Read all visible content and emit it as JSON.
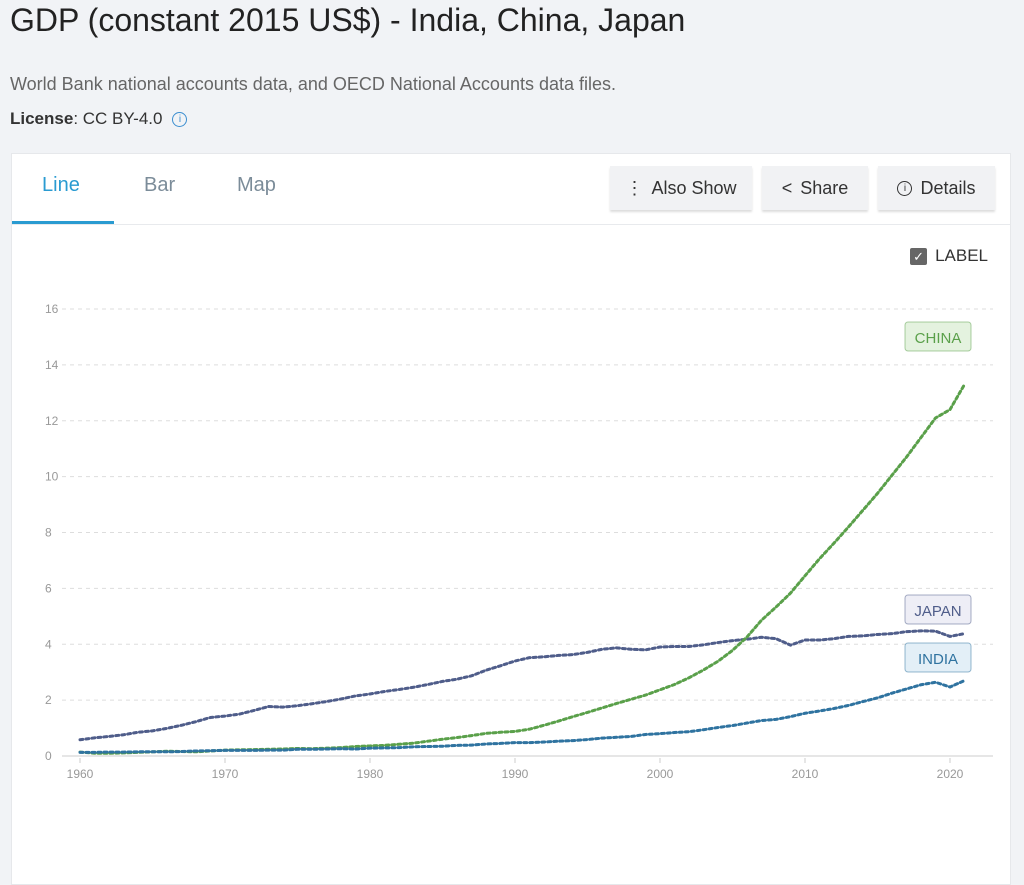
{
  "header": {
    "title": "GDP (constant 2015 US$) - India, China, Japan",
    "source": "World Bank national accounts data, and OECD National Accounts data files.",
    "license_label": "License",
    "license_value": ": CC BY-4.0"
  },
  "tabs": [
    {
      "label": "Line"
    },
    {
      "label": "Bar"
    },
    {
      "label": "Map"
    }
  ],
  "buttons": {
    "also_show": "Also Show",
    "share": "Share",
    "details": "Details"
  },
  "label_toggle": {
    "label": "LABEL",
    "checked": true
  },
  "chart_data": {
    "type": "line",
    "title": "GDP (constant 2015 US$) - India, China, Japan",
    "xlabel": "",
    "ylabel": "",
    "xlim": [
      1960,
      2021
    ],
    "ylim": [
      0,
      16
    ],
    "yticks": [
      0,
      2,
      4,
      6,
      8,
      10,
      12,
      14,
      16
    ],
    "xticks": [
      1960,
      1970,
      1980,
      1990,
      2000,
      2010,
      2020
    ],
    "x_start": 1960,
    "series": [
      {
        "name": "JAPAN",
        "color": "#4f5d8a",
        "label_bg": "#eeeef6",
        "values": [
          0.58,
          0.65,
          0.7,
          0.76,
          0.85,
          0.9,
          0.99,
          1.1,
          1.23,
          1.38,
          1.43,
          1.5,
          1.63,
          1.77,
          1.75,
          1.8,
          1.87,
          1.95,
          2.04,
          2.15,
          2.22,
          2.31,
          2.38,
          2.46,
          2.56,
          2.67,
          2.75,
          2.87,
          3.07,
          3.23,
          3.4,
          3.52,
          3.55,
          3.6,
          3.63,
          3.71,
          3.82,
          3.87,
          3.82,
          3.8,
          3.9,
          3.92,
          3.92,
          3.98,
          4.06,
          4.13,
          4.18,
          4.25,
          4.2,
          3.97,
          4.15,
          4.15,
          4.2,
          4.28,
          4.3,
          4.35,
          4.38,
          4.45,
          4.48,
          4.47,
          4.28,
          4.38
        ]
      },
      {
        "name": "CHINA",
        "color": "#5aa04a",
        "label_bg": "#e4f2df",
        "values": [
          0.14,
          0.1,
          0.1,
          0.11,
          0.13,
          0.15,
          0.17,
          0.16,
          0.15,
          0.18,
          0.21,
          0.22,
          0.23,
          0.24,
          0.25,
          0.27,
          0.26,
          0.28,
          0.3,
          0.34,
          0.36,
          0.38,
          0.42,
          0.46,
          0.53,
          0.6,
          0.66,
          0.73,
          0.81,
          0.85,
          0.88,
          0.96,
          1.1,
          1.25,
          1.41,
          1.56,
          1.72,
          1.88,
          2.03,
          2.18,
          2.37,
          2.56,
          2.8,
          3.08,
          3.39,
          3.78,
          4.26,
          4.86,
          5.33,
          5.83,
          6.45,
          7.06,
          7.62,
          8.2,
          8.8,
          9.4,
          10.05,
          10.7,
          11.4,
          12.1,
          12.4,
          13.3
        ]
      },
      {
        "name": "INDIA",
        "color": "#2f73a0",
        "label_bg": "#e3eff7",
        "values": [
          0.13,
          0.13,
          0.14,
          0.14,
          0.15,
          0.15,
          0.15,
          0.16,
          0.18,
          0.19,
          0.2,
          0.2,
          0.2,
          0.21,
          0.21,
          0.24,
          0.24,
          0.25,
          0.26,
          0.25,
          0.28,
          0.29,
          0.3,
          0.33,
          0.34,
          0.35,
          0.38,
          0.39,
          0.43,
          0.45,
          0.48,
          0.48,
          0.5,
          0.53,
          0.55,
          0.59,
          0.64,
          0.67,
          0.7,
          0.77,
          0.8,
          0.84,
          0.87,
          0.94,
          1.02,
          1.09,
          1.18,
          1.27,
          1.31,
          1.41,
          1.53,
          1.61,
          1.7,
          1.81,
          1.95,
          2.08,
          2.25,
          2.4,
          2.55,
          2.64,
          2.47,
          2.7
        ]
      }
    ]
  }
}
